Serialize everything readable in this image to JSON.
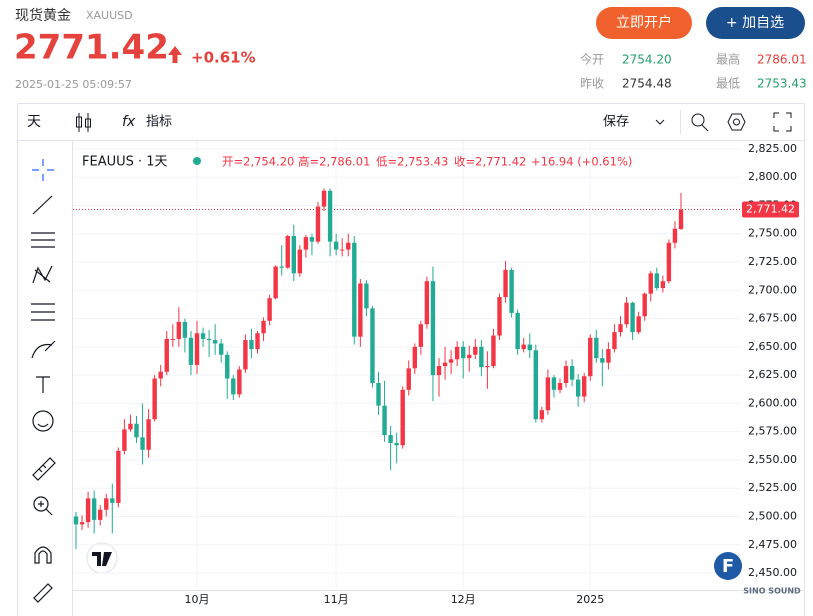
{
  "header": {
    "name": "现货黄金",
    "code": "XAUUSD",
    "price": "2771.42",
    "change": "+0.61%",
    "datetime": "2025-01-25 05:09:57"
  },
  "buttons": [
    "立即开户",
    "+ 加自选"
  ],
  "stats": [
    {
      "label": "今开",
      "value": "2754.20"
    },
    {
      "label": "最高",
      "value": "2786.01"
    },
    {
      "label": "昨收",
      "value": "2754.48"
    },
    {
      "label": "最低",
      "value": "2753.43"
    }
  ],
  "toolbar": {
    "interval": "天",
    "indicator_icon": "fx",
    "indicators": "指标",
    "save": "保存"
  },
  "logo": {
    "letter": "F",
    "brand": "SINO SOUND"
  },
  "chart_data": {
    "type": "candlestick",
    "symbol": "FEAUUS · 1天",
    "legend_values": [
      "开=2,754.20",
      "高=2,786.01",
      "低=2,753.43",
      "收=2,771.42",
      "+16.94 (+0.61%)"
    ],
    "up_color": "#f23645",
    "down_color": "#22ab94",
    "grid": true,
    "categories": [
      null,
      null,
      null,
      null,
      null,
      null,
      null,
      null,
      null,
      null,
      null,
      null,
      null,
      null,
      null,
      null,
      null,
      null,
      null,
      null,
      "10月",
      null,
      null,
      null,
      null,
      null,
      null,
      null,
      null,
      null,
      null,
      null,
      null,
      null,
      null,
      null,
      null,
      null,
      null,
      null,
      null,
      null,
      null,
      "11月",
      null,
      null,
      null,
      null,
      null,
      null,
      null,
      null,
      null,
      null,
      null,
      null,
      null,
      null,
      null,
      null,
      null,
      null,
      null,
      null,
      "12月",
      null,
      null,
      null,
      null,
      null,
      null,
      null,
      null,
      null,
      null,
      null,
      null,
      null,
      null,
      null,
      null,
      null,
      null,
      null,
      null,
      "2025",
      null,
      null,
      null,
      null,
      null,
      null,
      null,
      null,
      null,
      null,
      null,
      null,
      null,
      null,
      null
    ],
    "open": [
      2500,
      2493,
      2495,
      2516,
      2497,
      2506,
      2516,
      2512,
      2558,
      2577,
      2582,
      2570,
      2559,
      2586,
      2622,
      2628,
      2657,
      2657,
      2672,
      2658,
      2634,
      2662,
      2657,
      2656,
      2653,
      2643,
      2622,
      2608,
      2630,
      2656,
      2648,
      2662,
      2673,
      2693,
      2721,
      2720,
      2748,
      2715,
      2736,
      2747,
      2743,
      2774,
      2788,
      2743,
      2736,
      2736,
      2742,
      2659,
      2706,
      2684,
      2618,
      2598,
      2572,
      2565,
      2563,
      2612,
      2631,
      2650,
      2670,
      2708,
      2625,
      2633,
      2636,
      2639,
      2650,
      2640,
      2643,
      2650,
      2632,
      2633,
      2660,
      2694,
      2718,
      2680,
      2648,
      2652,
      2647,
      2586,
      2594,
      2623,
      2612,
      2618,
      2633,
      2621,
      2606,
      2624,
      2658,
      2640,
      2636,
      2648,
      2663,
      2670,
      2689,
      2663,
      2677,
      2697,
      2715,
      2702,
      2708,
      2742,
      2754.2
    ],
    "high": [
      2504,
      2501,
      2522,
      2523,
      2510,
      2520,
      2529,
      2561,
      2586,
      2590,
      2589,
      2600,
      2595,
      2625,
      2634,
      2664,
      2670,
      2685,
      2675,
      2664,
      2673,
      2667,
      2665,
      2670,
      2657,
      2646,
      2625,
      2633,
      2661,
      2666,
      2664,
      2676,
      2696,
      2722,
      2740,
      2749,
      2758,
      2740,
      2749,
      2750,
      2778,
      2790,
      2790,
      2750,
      2746,
      2750,
      2748,
      2710,
      2709,
      2686,
      2628,
      2620,
      2580,
      2574,
      2615,
      2638,
      2653,
      2673,
      2712,
      2721,
      2640,
      2650,
      2647,
      2655,
      2655,
      2651,
      2657,
      2656,
      2646,
      2666,
      2697,
      2726,
      2720,
      2683,
      2658,
      2662,
      2652,
      2597,
      2630,
      2625,
      2622,
      2638,
      2639,
      2626,
      2627,
      2661,
      2665,
      2648,
      2654,
      2670,
      2677,
      2694,
      2690,
      2681,
      2698,
      2717,
      2720,
      2713,
      2745,
      2761,
      2786.01
    ],
    "low": [
      2471,
      2488,
      2490,
      2485,
      2492,
      2500,
      2485,
      2508,
      2555,
      2575,
      2565,
      2546,
      2552,
      2584,
      2615,
      2625,
      2650,
      2650,
      2645,
      2625,
      2626,
      2650,
      2641,
      2643,
      2636,
      2604,
      2603,
      2605,
      2627,
      2640,
      2644,
      2655,
      2669,
      2692,
      2713,
      2719,
      2708,
      2712,
      2729,
      2731,
      2741,
      2770,
      2730,
      2731,
      2730,
      2730,
      2652,
      2650,
      2677,
      2614,
      2590,
      2566,
      2541,
      2547,
      2560,
      2607,
      2626,
      2643,
      2666,
      2602,
      2606,
      2621,
      2626,
      2633,
      2622,
      2628,
      2639,
      2624,
      2613,
      2631,
      2656,
      2689,
      2676,
      2643,
      2645,
      2640,
      2583,
      2583,
      2590,
      2605,
      2609,
      2614,
      2615,
      2597,
      2601,
      2620,
      2636,
      2615,
      2630,
      2645,
      2659,
      2667,
      2656,
      2661,
      2673,
      2690,
      2700,
      2698,
      2706,
      2737,
      2753.43
    ],
    "close": [
      2493,
      2495,
      2516,
      2497,
      2506,
      2516,
      2512,
      2558,
      2577,
      2582,
      2570,
      2559,
      2586,
      2622,
      2628,
      2657,
      2657,
      2672,
      2658,
      2634,
      2662,
      2657,
      2656,
      2653,
      2643,
      2622,
      2608,
      2630,
      2656,
      2648,
      2662,
      2673,
      2693,
      2721,
      2720,
      2748,
      2715,
      2736,
      2747,
      2743,
      2774,
      2788,
      2743,
      2736,
      2736,
      2742,
      2659,
      2706,
      2684,
      2618,
      2598,
      2572,
      2565,
      2563,
      2612,
      2631,
      2650,
      2670,
      2708,
      2625,
      2633,
      2636,
      2639,
      2650,
      2640,
      2643,
      2650,
      2632,
      2633,
      2660,
      2694,
      2718,
      2680,
      2648,
      2652,
      2647,
      2586,
      2594,
      2623,
      2612,
      2618,
      2633,
      2621,
      2606,
      2624,
      2658,
      2640,
      2636,
      2648,
      2663,
      2670,
      2689,
      2663,
      2677,
      2697,
      2715,
      2702,
      2708,
      2742,
      2754.48,
      2771.42
    ],
    "ylim": [
      2435,
      2832
    ],
    "yticks": [
      {
        "value": 2450,
        "label": "2,450.00"
      },
      {
        "value": 2475,
        "label": "2,475.00"
      },
      {
        "value": 2500,
        "label": "2,500.00"
      },
      {
        "value": 2525,
        "label": "2,525.00"
      },
      {
        "value": 2550,
        "label": "2,550.00"
      },
      {
        "value": 2575,
        "label": "2,575.00"
      },
      {
        "value": 2600,
        "label": "2,600.00"
      },
      {
        "value": 2625,
        "label": "2,625.00"
      },
      {
        "value": 2650,
        "label": "2,650.00"
      },
      {
        "value": 2675,
        "label": "2,675.00"
      },
      {
        "value": 2700,
        "label": "2,700.00"
      },
      {
        "value": 2725,
        "label": "2,725.00"
      },
      {
        "value": 2750,
        "label": "2,750.00"
      },
      {
        "value": 2775,
        "label": "2,775.00"
      },
      {
        "value": 2800,
        "label": "2,800.00"
      },
      {
        "value": 2825,
        "label": "2,825.00"
      }
    ],
    "last_price": {
      "value": 2771.42,
      "label": "2,771.42"
    }
  }
}
